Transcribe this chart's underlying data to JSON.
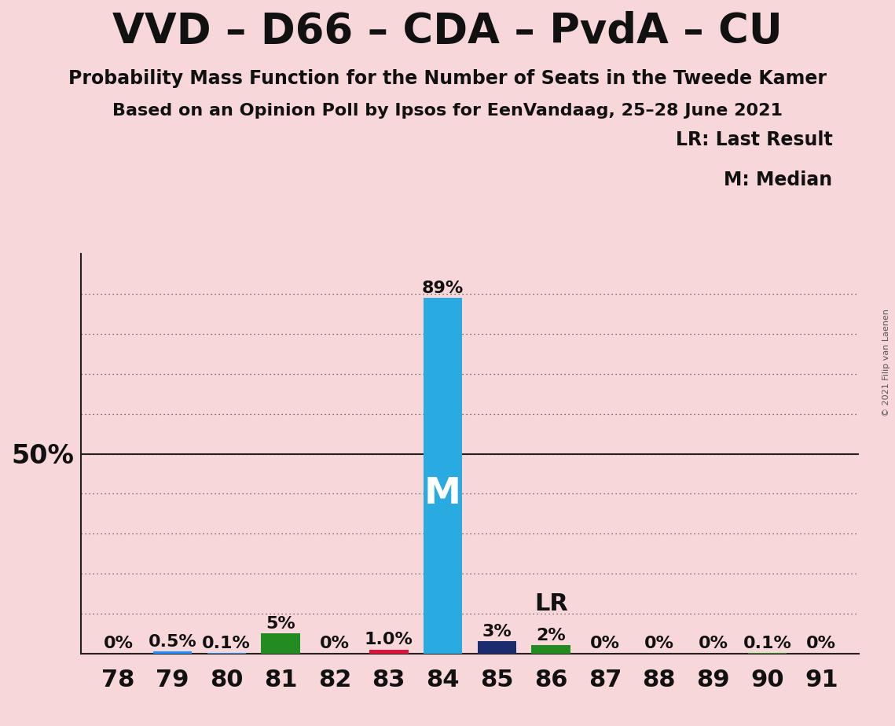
{
  "title": "VVD – D66 – CDA – PvdA – CU",
  "subtitle1": "Probability Mass Function for the Number of Seats in the Tweede Kamer",
  "subtitle2": "Based on an Opinion Poll by Ipsos for EenVandaag, 25–28 June 2021",
  "copyright": "© 2021 Filip van Laenen",
  "legend1": "LR: Last Result",
  "legend2": "M: Median",
  "background_color": "#f8d7da",
  "seats": [
    78,
    79,
    80,
    81,
    82,
    83,
    84,
    85,
    86,
    87,
    88,
    89,
    90,
    91
  ],
  "values": [
    0.0,
    0.5,
    0.1,
    5.0,
    0.0,
    1.0,
    89.0,
    3.0,
    2.0,
    0.0,
    0.0,
    0.0,
    0.1,
    0.0
  ],
  "labels": [
    "0%",
    "0.5%",
    "0.1%",
    "5%",
    "0%",
    "1.0%",
    "89%",
    "3%",
    "2%",
    "0%",
    "0%",
    "0%",
    "0.1%",
    "0%"
  ],
  "bar_colors": [
    "#1e90ff",
    "#1e90ff",
    "#1e90ff",
    "#228b22",
    "#228b22",
    "#dc143c",
    "#29abe2",
    "#1c2b6e",
    "#228b22",
    "#228b22",
    "#228b22",
    "#228b22",
    "#228b22",
    "#228b22"
  ],
  "median_seat": 84,
  "lr_seat": 86,
  "grid_color": "#444444",
  "axis_color": "#222222",
  "title_fontsize": 38,
  "subtitle_fontsize": 17,
  "label_fontsize": 16,
  "tick_fontsize": 22,
  "bar_width": 0.72,
  "grid_levels": [
    10,
    20,
    30,
    40,
    50,
    60,
    70,
    80,
    90
  ]
}
